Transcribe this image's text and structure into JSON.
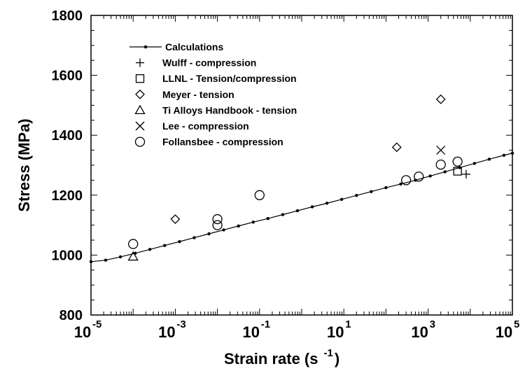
{
  "chart_data": {
    "type": "scatter",
    "xlabel": "Strain rate (s",
    "xlabel_sup": "-1",
    "xlabel_close": ")",
    "ylabel": "Stress  (MPa)",
    "x_scale": "log",
    "xlim": [
      1e-05,
      100000
    ],
    "ylim": [
      800,
      1800
    ],
    "x_ticks": [
      {
        "value": 1e-05,
        "base": "10",
        "exp": "-5"
      },
      {
        "value": 0.001,
        "base": "10",
        "exp": "-3"
      },
      {
        "value": 0.1,
        "base": "10",
        "exp": "-1"
      },
      {
        "value": 10,
        "base": "10",
        "exp": "1"
      },
      {
        "value": 1000,
        "base": "10",
        "exp": "3"
      },
      {
        "value": 100000,
        "base": "10",
        "exp": "5"
      }
    ],
    "y_ticks": [
      "800",
      "1000",
      "1200",
      "1400",
      "1600",
      "1800"
    ],
    "grid": false,
    "legend_position": "top-left",
    "series": [
      {
        "name": "Calculations",
        "marker": "line-dot",
        "x": [
          1e-05,
          2.23e-05,
          5e-05,
          0.000112,
          0.00025,
          0.00056,
          0.00126,
          0.00282,
          0.0063,
          0.0141,
          0.0316,
          0.0708,
          0.158,
          0.355,
          0.794,
          1.78,
          3.98,
          8.91,
          20,
          44.7,
          100,
          224,
          501,
          1122,
          2512,
          5623,
          12589,
          28184,
          63096,
          100000
        ],
        "y": [
          978,
          983,
          994,
          1006,
          1019,
          1032,
          1045,
          1058,
          1071,
          1084,
          1097,
          1110,
          1122,
          1135,
          1148,
          1161,
          1173,
          1186,
          1199,
          1212,
          1225,
          1237,
          1250,
          1264,
          1278,
          1292,
          1306,
          1320,
          1333,
          1340
        ]
      },
      {
        "name": "Wulff - compression",
        "marker": "plus",
        "x": [
          8000
        ],
        "y": [
          1270
        ]
      },
      {
        "name": "LLNL -  Tension/compression",
        "marker": "square",
        "x": [
          5000
        ],
        "y": [
          1280
        ]
      },
      {
        "name": "Meyer - tension",
        "marker": "diamond",
        "x": [
          0.001,
          180,
          2000
        ],
        "y": [
          1120,
          1360,
          1520
        ]
      },
      {
        "name": "Ti Alloys Handbook - tension",
        "marker": "triangle",
        "x": [
          0.0001
        ],
        "y": [
          995
        ]
      },
      {
        "name": " Lee - compression",
        "marker": "cross",
        "x": [
          2000
        ],
        "y": [
          1350
        ]
      },
      {
        "name": "Follansbee - compression",
        "marker": "circle",
        "x": [
          0.0001,
          0.01,
          0.01,
          0.1,
          300,
          600,
          2000,
          5000
        ],
        "y": [
          1037,
          1100,
          1120,
          1200,
          1250,
          1262,
          1302,
          1312
        ]
      }
    ]
  }
}
